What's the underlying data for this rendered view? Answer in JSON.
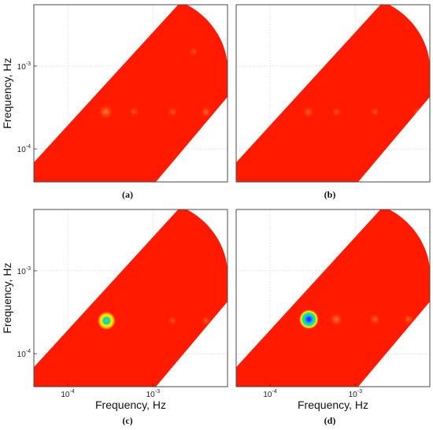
{
  "chart_data": [
    {
      "type": "heatmap",
      "panel_label": "(a)",
      "xlabel": "",
      "ylabel": "Frequency, Hz",
      "xscale": "log",
      "yscale": "log",
      "xlim": [
        4e-05,
        0.0075
      ],
      "ylim": [
        4e-05,
        0.0055
      ],
      "x_tick_labels": [],
      "y_tick_labels": [
        {
          "value": 0.0001,
          "base": "10",
          "exp": "-4"
        },
        {
          "value": 0.001,
          "base": "10",
          "exp": "-3"
        }
      ],
      "grid": true,
      "fill_color": "#ff1a00",
      "features": [
        {
          "x": 0.00028,
          "y": 0.00028,
          "intensity": 0.22
        },
        {
          "x": 0.0006,
          "y": 0.00028,
          "intensity": 0.08
        },
        {
          "x": 0.0017,
          "y": 0.00028,
          "intensity": 0.08
        },
        {
          "x": 0.0042,
          "y": 0.00028,
          "intensity": 0.12
        },
        {
          "x": 0.003,
          "y": 0.0015,
          "intensity": 0.06
        }
      ]
    },
    {
      "type": "heatmap",
      "panel_label": "(b)",
      "xlabel": "",
      "ylabel": "",
      "xscale": "log",
      "yscale": "log",
      "xlim": [
        4e-05,
        0.0075
      ],
      "ylim": [
        4e-05,
        0.0055
      ],
      "x_tick_labels": [],
      "y_tick_labels": [],
      "grid": true,
      "fill_color": "#ff1a00",
      "features": [
        {
          "x": 0.00028,
          "y": 0.00028,
          "intensity": 0.12
        },
        {
          "x": 0.0006,
          "y": 0.00028,
          "intensity": 0.06
        },
        {
          "x": 0.0017,
          "y": 0.00028,
          "intensity": 0.06
        },
        {
          "x": 0.0055,
          "y": 0.00028,
          "intensity": 0.1
        }
      ]
    },
    {
      "type": "heatmap",
      "panel_label": "(c)",
      "xlabel": "Frequency, Hz",
      "ylabel": "Frequency, Hz",
      "xscale": "log",
      "yscale": "log",
      "xlim": [
        4e-05,
        0.0075
      ],
      "ylim": [
        4e-05,
        0.0055
      ],
      "x_tick_labels": [
        {
          "value": 0.0001,
          "base": "10",
          "exp": "-4"
        },
        {
          "value": 0.001,
          "base": "10",
          "exp": "-3"
        }
      ],
      "y_tick_labels": [
        {
          "value": 0.0001,
          "base": "10",
          "exp": "-4"
        },
        {
          "value": 0.001,
          "base": "10",
          "exp": "-3"
        }
      ],
      "grid": true,
      "fill_color": "#ff1a00",
      "features": [
        {
          "x": 0.000285,
          "y": 0.00025,
          "intensity": 0.8
        },
        {
          "x": 0.0017,
          "y": 0.00025,
          "intensity": 0.06
        },
        {
          "x": 0.0042,
          "y": 0.00025,
          "intensity": 0.08
        }
      ]
    },
    {
      "type": "heatmap",
      "panel_label": "(d)",
      "xlabel": "Frequency, Hz",
      "ylabel": "",
      "xscale": "log",
      "yscale": "log",
      "xlim": [
        4e-05,
        0.0075
      ],
      "ylim": [
        4e-05,
        0.0055
      ],
      "x_tick_labels": [
        {
          "value": 0.0001,
          "base": "10",
          "exp": "-4"
        },
        {
          "value": 0.001,
          "base": "10",
          "exp": "-3"
        }
      ],
      "y_tick_labels": [],
      "grid": true,
      "fill_color": "#ff1a00",
      "features": [
        {
          "x": 0.000285,
          "y": 0.00026,
          "intensity": 1.0
        },
        {
          "x": 0.0006,
          "y": 0.00026,
          "intensity": 0.18
        },
        {
          "x": 0.0017,
          "y": 0.00026,
          "intensity": 0.12
        },
        {
          "x": 0.0042,
          "y": 0.00026,
          "intensity": 0.1
        }
      ]
    }
  ]
}
